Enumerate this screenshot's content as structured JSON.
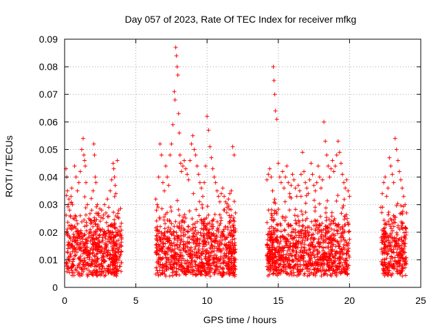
{
  "chart_data": {
    "type": "scatter",
    "title": "Day 057 of 2023, Rate Of TEC Index for receiver mfkg",
    "xlabel": "GPS time / hours",
    "ylabel": "ROTI / TECUs",
    "xlim": [
      0,
      25
    ],
    "ylim": [
      0,
      0.09
    ],
    "x_ticks": [
      "0",
      "5",
      "10",
      "15",
      "20",
      "25"
    ],
    "y_ticks": [
      "0",
      "0.01",
      "0.02",
      "0.03",
      "0.04",
      "0.05",
      "0.06",
      "0.07",
      "0.08",
      "0.09"
    ],
    "grid": true,
    "marker": "+",
    "color": "#ff0000",
    "series": [
      {
        "x": [
          0.1,
          0.15,
          0.2,
          0.25,
          0.3,
          0.35,
          0.4,
          0.45,
          0.5,
          0.55,
          0.6,
          0.7,
          0.8,
          0.9,
          1.0,
          1.1,
          1.2,
          1.3,
          1.35,
          1.4,
          1.45,
          1.5,
          1.6,
          1.7,
          1.8,
          1.9,
          2.0,
          2.05,
          2.1,
          2.15,
          2.2,
          2.3,
          2.4,
          2.5,
          2.6,
          2.7,
          2.8,
          2.9,
          3.0,
          3.1,
          3.2,
          3.3,
          3.4,
          3.45,
          3.5,
          3.55,
          3.6,
          3.7,
          3.8,
          3.9,
          4.0,
          6.4,
          6.5,
          6.6,
          6.7,
          6.8,
          6.9,
          7.0,
          7.1,
          7.2,
          7.3,
          7.4,
          7.5,
          7.6,
          7.7,
          7.75,
          7.8,
          7.85,
          7.9,
          7.95,
          8.0,
          8.05,
          8.1,
          8.15,
          8.2,
          8.3,
          8.4,
          8.5,
          8.6,
          8.7,
          8.8,
          8.9,
          9.0,
          9.1,
          9.2,
          9.3,
          9.4,
          9.5,
          9.6,
          9.7,
          9.8,
          9.9,
          10.0,
          10.1,
          10.2,
          10.3,
          10.4,
          10.5,
          10.6,
          10.7,
          10.8,
          10.9,
          11.0,
          11.1,
          11.2,
          11.3,
          11.4,
          11.5,
          11.6,
          11.7,
          11.8,
          11.9,
          12.0,
          14.2,
          14.3,
          14.4,
          14.5,
          14.6,
          14.65,
          14.7,
          14.75,
          14.8,
          14.9,
          15.0,
          15.1,
          15.2,
          15.3,
          15.4,
          15.5,
          15.6,
          15.7,
          15.8,
          15.9,
          16.0,
          16.1,
          16.2,
          16.3,
          16.4,
          16.5,
          16.6,
          16.7,
          16.8,
          16.9,
          17.0,
          17.1,
          17.2,
          17.3,
          17.4,
          17.5,
          17.6,
          17.7,
          17.8,
          17.9,
          18.0,
          18.1,
          18.2,
          18.3,
          18.4,
          18.5,
          18.6,
          18.7,
          18.8,
          18.9,
          19.0,
          19.1,
          19.2,
          19.3,
          19.4,
          19.5,
          19.6,
          19.7,
          19.8,
          19.9,
          20.0,
          22.2,
          22.3,
          22.4,
          22.5,
          22.6,
          22.7,
          22.8,
          22.9,
          23.0,
          23.1,
          23.2,
          23.3,
          23.4,
          23.5,
          23.6,
          23.7,
          23.8,
          23.9,
          24.0
        ],
        "y": [
          0.043,
          0.04,
          0.035,
          0.03,
          0.032,
          0.028,
          0.026,
          0.033,
          0.036,
          0.03,
          0.025,
          0.044,
          0.04,
          0.035,
          0.038,
          0.042,
          0.05,
          0.054,
          0.048,
          0.046,
          0.044,
          0.038,
          0.03,
          0.025,
          0.02,
          0.028,
          0.035,
          0.052,
          0.048,
          0.04,
          0.038,
          0.03,
          0.026,
          0.024,
          0.028,
          0.025,
          0.03,
          0.027,
          0.032,
          0.029,
          0.035,
          0.039,
          0.045,
          0.043,
          0.04,
          0.037,
          0.034,
          0.046,
          0.028,
          0.022,
          0.018,
          0.032,
          0.03,
          0.04,
          0.052,
          0.048,
          0.038,
          0.035,
          0.044,
          0.04,
          0.037,
          0.048,
          0.052,
          0.059,
          0.071,
          0.068,
          0.087,
          0.084,
          0.08,
          0.077,
          0.063,
          0.056,
          0.048,
          0.045,
          0.042,
          0.044,
          0.046,
          0.043,
          0.041,
          0.039,
          0.046,
          0.052,
          0.055,
          0.05,
          0.048,
          0.044,
          0.041,
          0.038,
          0.036,
          0.033,
          0.038,
          0.044,
          0.062,
          0.057,
          0.051,
          0.047,
          0.043,
          0.04,
          0.038,
          0.035,
          0.033,
          0.031,
          0.034,
          0.036,
          0.033,
          0.031,
          0.029,
          0.032,
          0.034,
          0.035,
          0.051,
          0.048,
          0.027,
          0.039,
          0.041,
          0.043,
          0.04,
          0.035,
          0.08,
          0.075,
          0.07,
          0.064,
          0.061,
          0.045,
          0.04,
          0.038,
          0.042,
          0.036,
          0.04,
          0.044,
          0.038,
          0.034,
          0.037,
          0.041,
          0.039,
          0.036,
          0.033,
          0.037,
          0.035,
          0.041,
          0.049,
          0.042,
          0.038,
          0.036,
          0.034,
          0.039,
          0.045,
          0.041,
          0.037,
          0.035,
          0.038,
          0.044,
          0.04,
          0.036,
          0.039,
          0.06,
          0.053,
          0.048,
          0.044,
          0.04,
          0.043,
          0.046,
          0.042,
          0.044,
          0.048,
          0.053,
          0.049,
          0.045,
          0.041,
          0.038,
          0.036,
          0.039,
          0.035,
          0.033,
          0.029,
          0.034,
          0.038,
          0.04,
          0.033,
          0.036,
          0.047,
          0.044,
          0.041,
          0.038,
          0.054,
          0.05,
          0.046,
          0.042,
          0.039,
          0.036,
          0.033,
          0.03,
          0.027
        ]
      }
    ]
  }
}
